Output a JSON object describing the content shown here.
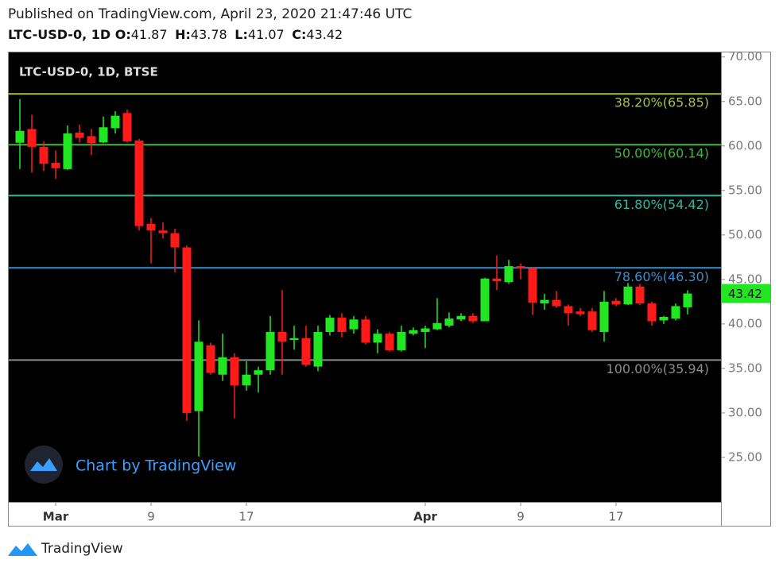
{
  "header": {
    "published": "Published on TradingView.com, April 23, 2020 21:47:46 UTC",
    "symbol": "LTC-USD-0, 1D",
    "ohlc_labels": [
      "O:",
      "H:",
      "L:",
      "C:"
    ]
  },
  "footer": {
    "brand": "TradingView"
  },
  "chart_data": {
    "type": "candlestick",
    "legend": "LTC-USD-0, 1D, BTSE",
    "watermark": "Chart by TradingView",
    "up_color": "#22e622",
    "down_color": "#ff1a1a",
    "x": [
      "2020-02-27",
      "2020-02-28",
      "2020-02-29",
      "2020-03-01",
      "2020-03-02",
      "2020-03-03",
      "2020-03-04",
      "2020-03-05",
      "2020-03-06",
      "2020-03-07",
      "2020-03-08",
      "2020-03-09",
      "2020-03-10",
      "2020-03-11",
      "2020-03-12",
      "2020-03-13",
      "2020-03-14",
      "2020-03-15",
      "2020-03-16",
      "2020-03-17",
      "2020-03-18",
      "2020-03-19",
      "2020-03-20",
      "2020-03-21",
      "2020-03-22",
      "2020-03-23",
      "2020-03-24",
      "2020-03-25",
      "2020-03-26",
      "2020-03-27",
      "2020-03-28",
      "2020-03-29",
      "2020-03-30",
      "2020-03-31",
      "2020-04-01",
      "2020-04-02",
      "2020-04-03",
      "2020-04-04",
      "2020-04-05",
      "2020-04-06",
      "2020-04-07",
      "2020-04-08",
      "2020-04-09",
      "2020-04-10",
      "2020-04-11",
      "2020-04-12",
      "2020-04-13",
      "2020-04-14",
      "2020-04-15",
      "2020-04-16",
      "2020-04-17",
      "2020-04-18",
      "2020-04-19",
      "2020-04-20",
      "2020-04-21",
      "2020-04-22",
      "2020-04-23"
    ],
    "open": [
      60.36,
      61.9,
      59.9,
      58.1,
      57.4,
      61.5,
      61.1,
      60.4,
      62.0,
      63.7,
      60.6,
      51.25,
      50.5,
      50.2,
      48.6,
      30.2,
      37.6,
      34.3,
      36.25,
      33.1,
      34.3,
      34.8,
      39.1,
      38.2,
      38.4,
      35.2,
      39.1,
      40.7,
      39.4,
      40.5,
      37.9,
      38.9,
      37.05,
      38.9,
      39.1,
      39.4,
      39.8,
      40.5,
      40.9,
      40.3,
      45.1,
      44.7,
      46.5,
      46.25,
      42.3,
      42.7,
      42.0,
      41.4,
      41.4,
      39.1,
      42.6,
      42.2,
      44.2,
      42.3,
      40.4,
      40.6,
      41.87
    ],
    "high": [
      65.27,
      63.5,
      60.5,
      59.5,
      62.3,
      62.4,
      61.9,
      63.3,
      63.9,
      64.1,
      60.8,
      51.9,
      51.4,
      50.7,
      48.8,
      40.4,
      37.9,
      38.9,
      36.7,
      35.8,
      35.2,
      40.9,
      43.8,
      39.8,
      39.8,
      39.8,
      41.0,
      41.2,
      40.9,
      40.9,
      39.4,
      39.1,
      39.8,
      39.6,
      39.8,
      42.9,
      41.3,
      41.2,
      41.2,
      45.2,
      47.7,
      47.2,
      46.8,
      46.4,
      43.4,
      43.7,
      42.2,
      41.8,
      41.8,
      43.7,
      42.9,
      44.6,
      44.5,
      42.5,
      40.9,
      42.3,
      43.78
    ],
    "low": [
      57.41,
      57.0,
      57.2,
      56.3,
      57.3,
      60.4,
      59.0,
      60.3,
      61.4,
      60.4,
      50.5,
      46.8,
      49.6,
      45.8,
      29.1,
      25.1,
      34.3,
      33.6,
      29.4,
      32.5,
      32.3,
      34.3,
      34.3,
      37.1,
      35.2,
      34.7,
      38.7,
      38.5,
      38.9,
      37.7,
      36.7,
      36.9,
      36.9,
      38.7,
      37.3,
      39.3,
      39.6,
      40.3,
      40.1,
      40.3,
      43.8,
      44.5,
      45.0,
      41.0,
      41.6,
      41.8,
      39.8,
      40.9,
      39.1,
      38.0,
      42.0,
      42.1,
      42.1,
      39.8,
      40.0,
      40.4,
      41.07
    ],
    "close": [
      61.7,
      59.9,
      58.0,
      57.5,
      61.4,
      60.9,
      60.3,
      62.1,
      63.4,
      60.5,
      51.0,
      50.5,
      50.2,
      48.6,
      30.0,
      38.0,
      34.5,
      36.25,
      33.1,
      34.3,
      34.8,
      39.1,
      38.0,
      38.4,
      35.4,
      39.1,
      40.7,
      39.1,
      40.5,
      37.9,
      38.9,
      37.05,
      39.1,
      39.3,
      39.5,
      40.1,
      40.6,
      40.9,
      40.3,
      45.1,
      44.8,
      46.5,
      46.25,
      42.4,
      42.7,
      42.0,
      41.2,
      41.1,
      39.3,
      42.5,
      42.2,
      44.2,
      42.3,
      40.3,
      40.8,
      42.0,
      43.42
    ],
    "ylim": [
      20,
      70.6
    ],
    "yticks": [
      {
        "value": 25,
        "label": "25.00"
      },
      {
        "value": 30,
        "label": "30.00"
      },
      {
        "value": 35,
        "label": "35.00"
      },
      {
        "value": 40,
        "label": "40.00"
      },
      {
        "value": 45,
        "label": "45.00"
      },
      {
        "value": 50,
        "label": "50.00"
      },
      {
        "value": 55,
        "label": "55.00"
      },
      {
        "value": 60,
        "label": "60.00"
      },
      {
        "value": 65,
        "label": "65.00"
      },
      {
        "value": 70,
        "label": "70.00"
      }
    ],
    "xticks": [
      {
        "value": "2020-03-01",
        "label": "Mar"
      },
      {
        "value": "2020-03-09",
        "label": "9"
      },
      {
        "value": "2020-03-17",
        "label": "17"
      },
      {
        "value": "2020-04-01",
        "label": "Apr"
      },
      {
        "value": "2020-04-09",
        "label": "9"
      },
      {
        "value": "2020-04-17",
        "label": "17"
      }
    ],
    "fib_levels": [
      {
        "label": "38.20%(65.85)",
        "value": 65.85,
        "color": "#a4c23a"
      },
      {
        "label": "50.00%(60.14)",
        "value": 60.14,
        "color": "#3fb83a"
      },
      {
        "label": "61.80%(54.42)",
        "value": 54.42,
        "color": "#2fb8a0"
      },
      {
        "label": "78.60%(46.30)",
        "value": 46.3,
        "color": "#3a8fd0"
      },
      {
        "label": "100.00%(35.94)",
        "value": 35.94,
        "color": "#8c8c8c"
      }
    ]
  }
}
